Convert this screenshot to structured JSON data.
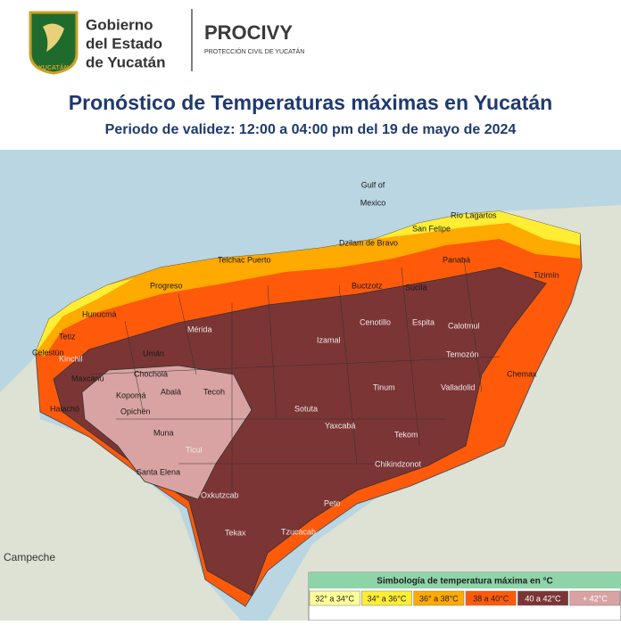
{
  "header": {
    "shield_text": "YUCATÁN",
    "gov_lines": [
      "Gobierno",
      "del Estado",
      "de Yucatán"
    ],
    "procivy": "PROCIVY",
    "procivy_sub": "PROTECCIÓN CIVIL DE YUCATÁN",
    "title": "Pronóstico de Temperaturas máximas en Yucatán",
    "subtitle": "Periodo de validez: 12:00 a 04:00 pm del 19 de mayo de 2024"
  },
  "map": {
    "labels": [
      "Gulf of",
      "Mexico",
      "Campeche",
      "Río Lagartos",
      "San Felipe",
      "Dzilam de Bravo",
      "Panabá",
      "Tizimín",
      "Progreso",
      "Hunucmá",
      "Celestún",
      "Mérida",
      "Izamal",
      "Valladolid",
      "Chemax",
      "Temozón",
      "Espita",
      "Calotmul",
      "Buctzotz",
      "Cenotillo",
      "Sucilá",
      "Tinum",
      "Sotuta",
      "Yaxcabá",
      "Tekax",
      "Peto",
      "Ticul",
      "Muna",
      "Abalá",
      "Maxcanú",
      "Halachó",
      "Opichén",
      "Kopomá",
      "Chocholá",
      "Umán",
      "Tecoh",
      "Santa Elena",
      "Oxkutzcab",
      "Tzucacab",
      "Chikindzonot",
      "Tekom",
      "Kinchil",
      "Tetiz",
      "Telchac Puerto"
    ]
  },
  "legend": {
    "title": "Simbología de temperatura máxima en °C",
    "items": [
      {
        "label": "32° a 34°C",
        "color": "#ffff99"
      },
      {
        "label": "34° a 36°C",
        "color": "#ffee33"
      },
      {
        "label": "36° a 38°C",
        "color": "#ffaa00"
      },
      {
        "label": "38 a 40°C",
        "color": "#ff5a0a"
      },
      {
        "label": "40 a 42°C",
        "color": "#7b3535"
      },
      {
        "label": "+ 42°C",
        "color": "#d9a3a3"
      }
    ]
  }
}
